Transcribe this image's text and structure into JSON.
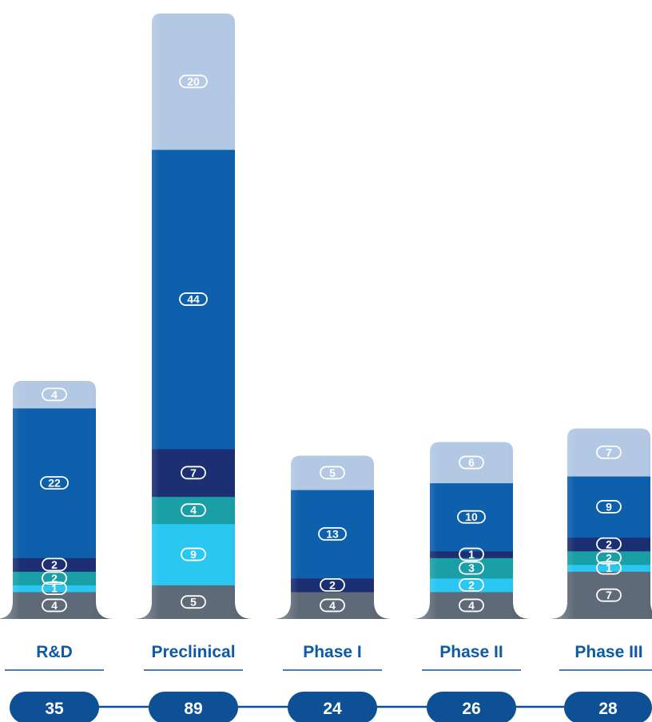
{
  "chart_data": {
    "type": "bar",
    "stacked": true,
    "categories": [
      "R&D",
      "Preclinical",
      "Phase I",
      "Phase II",
      "Phase III"
    ],
    "totals": [
      "35",
      "89",
      "24",
      "26",
      "28"
    ],
    "series": [
      {
        "color": "#5e6a77",
        "values": [
          4,
          5,
          4,
          4,
          7
        ]
      },
      {
        "color": "#2ac7f2",
        "values": [
          1,
          9,
          0,
          2,
          1
        ]
      },
      {
        "color": "#1a9fa6",
        "values": [
          2,
          4,
          0,
          3,
          2
        ]
      },
      {
        "color": "#1c2f73",
        "values": [
          2,
          7,
          2,
          1,
          2
        ]
      },
      {
        "color": "#0e5fac",
        "values": [
          22,
          44,
          13,
          10,
          9
        ]
      },
      {
        "color": "#b3c9e3",
        "values": [
          4,
          20,
          5,
          6,
          7
        ]
      }
    ],
    "colors": {
      "category_text": "#0d5aa7",
      "pill": "#0e5096",
      "connector": "#0e5096",
      "separator": "#0e5096"
    }
  }
}
